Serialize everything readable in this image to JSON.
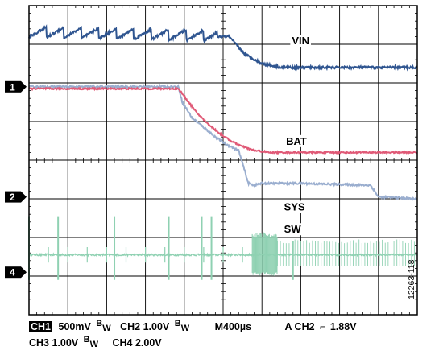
{
  "chart_data": {
    "type": "line",
    "title": "",
    "grid": {
      "divisions_x": 10,
      "divisions_y": 8,
      "on": true
    },
    "series": [
      {
        "name": "VIN",
        "color": "#2f5590",
        "x_div": [
          0,
          4.85,
          5.15,
          5.55,
          6.0,
          6.5,
          7.0,
          8.0,
          9.0,
          10.0
        ],
        "y_div": [
          7.3,
          7.2,
          7.2,
          6.75,
          6.5,
          6.4,
          6.4,
          6.4,
          6.4,
          6.4
        ]
      },
      {
        "name": "BAT",
        "color": "#e05a77",
        "x_div": [
          0,
          3.85,
          4.0,
          4.3,
          4.6,
          4.9,
          5.2,
          5.5,
          5.8,
          6.2,
          7.0,
          10.0
        ],
        "y_div": [
          5.85,
          5.85,
          5.65,
          5.25,
          4.95,
          4.7,
          4.5,
          4.35,
          4.25,
          4.2,
          4.2,
          4.2
        ]
      },
      {
        "name": "SYS",
        "color": "#9aaecf",
        "x_div": [
          0,
          3.85,
          3.95,
          4.2,
          4.5,
          4.8,
          5.1,
          5.4,
          5.55,
          5.65,
          5.8,
          6.0,
          7.0,
          8.8,
          9.0,
          10.0
        ],
        "y_div": [
          5.9,
          5.9,
          5.5,
          5.1,
          4.85,
          4.6,
          4.4,
          4.25,
          3.75,
          3.4,
          3.35,
          3.4,
          3.4,
          3.35,
          3.05,
          3.0
        ]
      },
      {
        "name": "SW",
        "color": "#8fd1b2",
        "baseline_div": 1.55,
        "spike_x_div": [
          0.0,
          0.75,
          2.2,
          3.6,
          4.45,
          4.7,
          6.8
        ],
        "spike_y_div": [
          2.55,
          2.55,
          2.55,
          2.55,
          2.55,
          2.55,
          1.9
        ],
        "burst_x_div": [
          5.75,
          6.4
        ],
        "burst_y_div": 2.15,
        "tail_y_div": 1.95
      }
    ],
    "labels": [
      "VIN",
      "BAT",
      "SYS",
      "SW"
    ],
    "channel_markers": [
      "1",
      "2",
      "4"
    ],
    "channel_marker_y_div": [
      5.9,
      3.05,
      1.1
    ]
  },
  "footer": {
    "ch1_label": "CH1",
    "ch1_scale": "500mV",
    "ch2_text": "CH2  1.00V",
    "time_scale": "M400µs",
    "trigger": "A  CH2",
    "trigger_symbol": "⌐",
    "trigger_level": "1.88V",
    "ch3_text": "CH3  1.00V",
    "ch4_text": "CH4  2.00V",
    "bw_b": "B",
    "bw_w": "W"
  },
  "figure_code": "12263-118"
}
